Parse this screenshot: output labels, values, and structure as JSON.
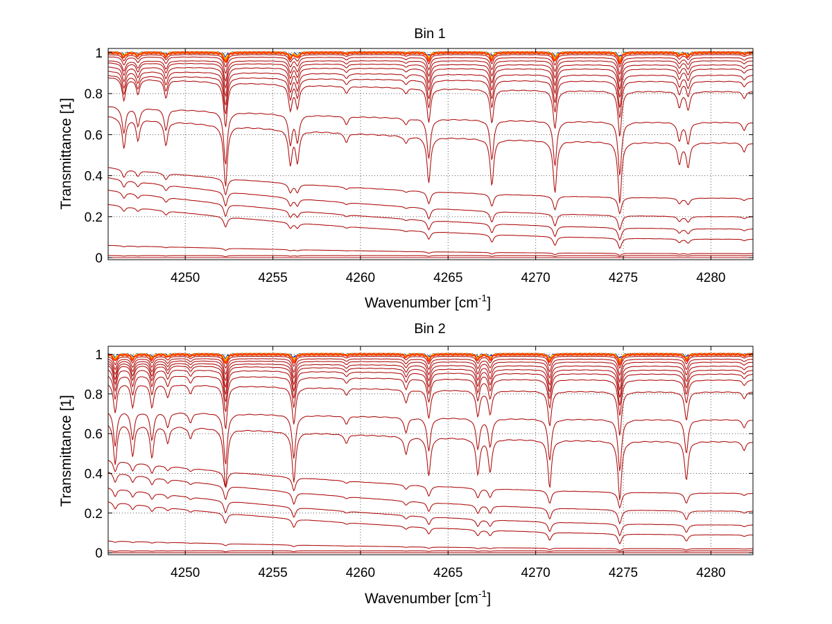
{
  "figure": {
    "background": "#ffffff"
  },
  "chart_data": [
    {
      "type": "line",
      "title": "Bin 1",
      "xlabel": "Wavenumber [cm",
      "xlabel_sup": "-1",
      "xlabel_end": "]",
      "ylabel": "Transmittance [1]",
      "xlim": [
        4245.6,
        4282.4
      ],
      "ylim": [
        -0.01,
        1.02
      ],
      "xticks": [
        4250,
        4255,
        4260,
        4265,
        4270,
        4275,
        4280
      ],
      "yticks": [
        0,
        0.2,
        0.4,
        0.6,
        0.8,
        1
      ],
      "xtick_labels": [
        "4250",
        "4255",
        "4260",
        "4265",
        "4270",
        "4275",
        "4280"
      ],
      "ytick_labels": [
        "0",
        "0.2",
        "0.4",
        "0.6",
        "0.8",
        "1"
      ],
      "grid": true,
      "line_color": "#b01010",
      "top_band_colors": [
        "#1f3fbf",
        "#ffd000",
        "#ff8c00",
        "#ff3300"
      ],
      "absorption_lines": [
        {
          "x": 4246.5,
          "depth": 0.5
        },
        {
          "x": 4247.3,
          "depth": 0.35
        },
        {
          "x": 4248.9,
          "depth": 0.4
        },
        {
          "x": 4252.3,
          "depth": 1.0
        },
        {
          "x": 4256.0,
          "depth": 0.55
        },
        {
          "x": 4256.4,
          "depth": 0.5
        },
        {
          "x": 4259.2,
          "depth": 0.15
        },
        {
          "x": 4262.6,
          "depth": 0.12
        },
        {
          "x": 4263.9,
          "depth": 0.75
        },
        {
          "x": 4267.5,
          "depth": 0.75
        },
        {
          "x": 4271.1,
          "depth": 0.85
        },
        {
          "x": 4274.8,
          "depth": 1.0
        },
        {
          "x": 4278.2,
          "depth": 0.35
        },
        {
          "x": 4278.7,
          "depth": 0.4
        },
        {
          "x": 4281.9,
          "depth": 0.15
        }
      ],
      "series": [
        {
          "base_left": 1.0,
          "base_right": 1.0,
          "scale": 0.04
        },
        {
          "base_left": 0.99,
          "base_right": 0.99,
          "scale": 0.06
        },
        {
          "base_left": 0.98,
          "base_right": 0.975,
          "scale": 0.08
        },
        {
          "base_left": 0.96,
          "base_right": 0.96,
          "scale": 0.1
        },
        {
          "base_left": 0.95,
          "base_right": 0.94,
          "scale": 0.12
        },
        {
          "base_left": 0.93,
          "base_right": 0.92,
          "scale": 0.14
        },
        {
          "base_left": 0.91,
          "base_right": 0.89,
          "scale": 0.16
        },
        {
          "base_left": 0.89,
          "base_right": 0.86,
          "scale": 0.18
        },
        {
          "base_left": 0.88,
          "base_right": 0.81,
          "scale": 0.22
        },
        {
          "base_left": 0.74,
          "base_right": 0.66,
          "scale": 0.26
        },
        {
          "base_left": 0.69,
          "base_right": 0.56,
          "scale": 0.3
        },
        {
          "base_left": 0.44,
          "base_right": 0.29,
          "scale": 0.08
        },
        {
          "base_left": 0.39,
          "base_right": 0.2,
          "scale": 0.07
        },
        {
          "base_left": 0.33,
          "base_right": 0.14,
          "scale": 0.06
        },
        {
          "base_left": 0.26,
          "base_right": 0.09,
          "scale": 0.05
        },
        {
          "base_left": 0.06,
          "base_right": 0.02,
          "scale": 0.01
        },
        {
          "base_left": 0.01,
          "base_right": 0.01,
          "scale": 0.005
        },
        {
          "base_left": 0.0,
          "base_right": 0.0,
          "scale": 0.0
        }
      ]
    },
    {
      "type": "line",
      "title": "Bin 2",
      "xlabel": "Wavenumber [cm",
      "xlabel_sup": "-1",
      "xlabel_end": "]",
      "ylabel": "Transmittance [1]",
      "xlim": [
        4245.6,
        4282.4
      ],
      "ylim": [
        -0.01,
        1.04
      ],
      "xticks": [
        4250,
        4255,
        4260,
        4265,
        4270,
        4275,
        4280
      ],
      "yticks": [
        0,
        0.2,
        0.4,
        0.6,
        0.8,
        1
      ],
      "xtick_labels": [
        "4250",
        "4255",
        "4260",
        "4265",
        "4270",
        "4275",
        "4280"
      ],
      "ytick_labels": [
        "0",
        "0.2",
        "0.4",
        "0.6",
        "0.8",
        "1"
      ],
      "grid": true,
      "line_color": "#b01010",
      "top_band_colors": [
        "#1f3fbf",
        "#ffd000",
        "#ff8c00",
        "#ff3300"
      ],
      "absorption_lines": [
        {
          "x": 4246.0,
          "depth": 0.7
        },
        {
          "x": 4247.0,
          "depth": 0.55
        },
        {
          "x": 4248.1,
          "depth": 0.55
        },
        {
          "x": 4249.0,
          "depth": 0.3
        },
        {
          "x": 4250.3,
          "depth": 0.2
        },
        {
          "x": 4252.3,
          "depth": 1.0
        },
        {
          "x": 4256.2,
          "depth": 0.85
        },
        {
          "x": 4259.2,
          "depth": 0.15
        },
        {
          "x": 4262.6,
          "depth": 0.3
        },
        {
          "x": 4263.9,
          "depth": 0.65
        },
        {
          "x": 4266.7,
          "depth": 0.6
        },
        {
          "x": 4267.4,
          "depth": 0.55
        },
        {
          "x": 4270.8,
          "depth": 0.8
        },
        {
          "x": 4274.8,
          "depth": 1.0
        },
        {
          "x": 4278.6,
          "depth": 0.65
        },
        {
          "x": 4281.9,
          "depth": 0.15
        }
      ],
      "series": [
        {
          "base_left": 1.0,
          "base_right": 1.0,
          "scale": 0.04
        },
        {
          "base_left": 0.99,
          "base_right": 0.99,
          "scale": 0.06
        },
        {
          "base_left": 0.98,
          "base_right": 0.975,
          "scale": 0.08
        },
        {
          "base_left": 0.97,
          "base_right": 0.96,
          "scale": 0.1
        },
        {
          "base_left": 0.96,
          "base_right": 0.94,
          "scale": 0.12
        },
        {
          "base_left": 0.95,
          "base_right": 0.92,
          "scale": 0.14
        },
        {
          "base_left": 0.93,
          "base_right": 0.9,
          "scale": 0.16
        },
        {
          "base_left": 0.9,
          "base_right": 0.87,
          "scale": 0.18
        },
        {
          "base_left": 0.86,
          "base_right": 0.81,
          "scale": 0.22
        },
        {
          "base_left": 0.72,
          "base_right": 0.67,
          "scale": 0.26
        },
        {
          "base_left": 0.66,
          "base_right": 0.56,
          "scale": 0.3
        },
        {
          "base_left": 0.47,
          "base_right": 0.3,
          "scale": 0.08
        },
        {
          "base_left": 0.41,
          "base_right": 0.21,
          "scale": 0.07
        },
        {
          "base_left": 0.33,
          "base_right": 0.14,
          "scale": 0.06
        },
        {
          "base_left": 0.26,
          "base_right": 0.09,
          "scale": 0.05
        },
        {
          "base_left": 0.06,
          "base_right": 0.02,
          "scale": 0.01
        },
        {
          "base_left": 0.01,
          "base_right": 0.01,
          "scale": 0.005
        },
        {
          "base_left": 0.0,
          "base_right": 0.0,
          "scale": 0.0
        }
      ]
    }
  ]
}
